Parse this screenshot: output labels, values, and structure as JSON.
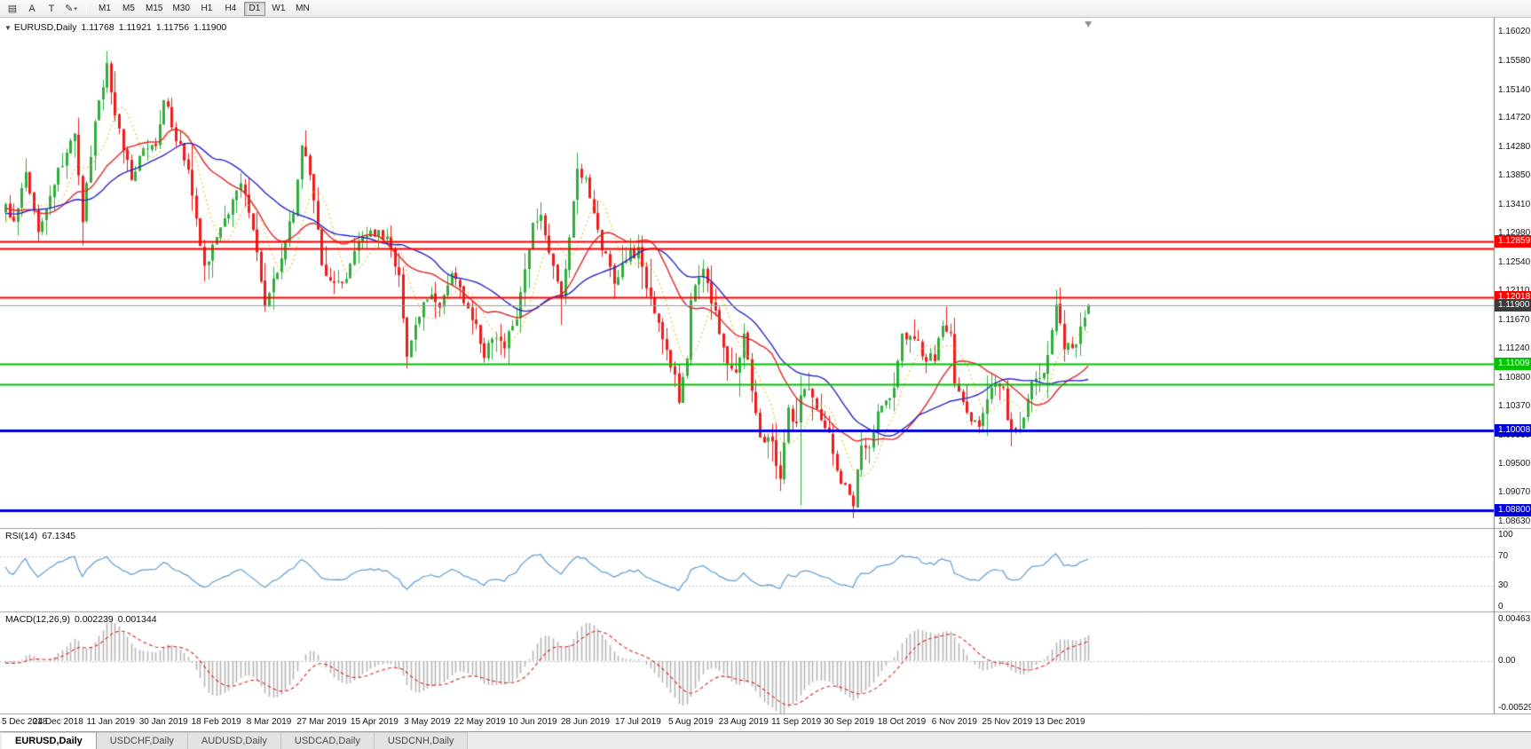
{
  "toolbar": {
    "left_buttons": [
      {
        "name": "charts-icon",
        "glyph": "▤"
      },
      {
        "name": "arrow-tool",
        "label": "A"
      },
      {
        "name": "text-tool",
        "label": "T"
      },
      {
        "name": "draw-tool",
        "glyph": "✎"
      },
      {
        "name": "dropdown-arrow",
        "glyph": "▾"
      }
    ],
    "timeframes": [
      {
        "label": "M1",
        "active": false
      },
      {
        "label": "M5",
        "active": false
      },
      {
        "label": "M15",
        "active": false
      },
      {
        "label": "M30",
        "active": false
      },
      {
        "label": "H1",
        "active": false
      },
      {
        "label": "H4",
        "active": false
      },
      {
        "label": "D1",
        "active": true
      },
      {
        "label": "W1",
        "active": false
      },
      {
        "label": "MN",
        "active": false
      }
    ]
  },
  "chart_header": {
    "collapse_arrow": "▼",
    "symbol": "EURUSD,Daily",
    "open": "1.11768",
    "high": "1.11921",
    "low": "1.11756",
    "close": "1.11900"
  },
  "price_axis": {
    "ticks": [
      "1.16020",
      "1.15580",
      "1.15140",
      "1.14720",
      "1.14280",
      "1.13850",
      "1.13410",
      "1.12980",
      "1.12540",
      "1.12110",
      "1.11670",
      "1.11240",
      "1.10800",
      "1.10370",
      "1.09930",
      "1.09500",
      "1.09070",
      "1.08630"
    ],
    "current_price": {
      "label": "1.11900",
      "color": "#3b3b3b"
    }
  },
  "x_axis": {
    "bars_per_label": 13,
    "labels": [
      "5 Dec 2018",
      "24 Dec 2018",
      "11 Jan 2019",
      "30 Jan 2019",
      "18 Feb 2019",
      "8 Mar 2019",
      "27 Mar 2019",
      "15 Apr 2019",
      "3 May 2019",
      "22 May 2019",
      "10 Jun 2019",
      "28 Jun 2019",
      "17 Jul 2019",
      "5 Aug 2019",
      "23 Aug 2019",
      "11 Sep 2019",
      "30 Sep 2019",
      "18 Oct 2019",
      "6 Nov 2019",
      "25 Nov 2019",
      "13 Dec 2019"
    ]
  },
  "chart_data": [
    {
      "type": "candlestick",
      "title": "EURUSD,Daily",
      "n_bars": 268,
      "y_range": [
        1.0863,
        1.1602
      ],
      "bull_color": "#2fae3d",
      "bear_color": "#ef1c1c",
      "last_ohlc": {
        "open": 1.11768,
        "high": 1.11921,
        "low": 1.11756,
        "close": 1.119
      },
      "close_path_anchors": [
        [
          0,
          1.134
        ],
        [
          2,
          1.1315
        ],
        [
          5,
          1.1395
        ],
        [
          8,
          1.13
        ],
        [
          11,
          1.135
        ],
        [
          13,
          1.1395
        ],
        [
          17,
          1.1445
        ],
        [
          19,
          1.132
        ],
        [
          22,
          1.146
        ],
        [
          25,
          1.1555
        ],
        [
          27,
          1.148
        ],
        [
          31,
          1.138
        ],
        [
          34,
          1.1425
        ],
        [
          37,
          1.1435
        ],
        [
          39,
          1.15
        ],
        [
          42,
          1.1445
        ],
        [
          45,
          1.14
        ],
        [
          49,
          1.1245
        ],
        [
          52,
          1.13
        ],
        [
          56,
          1.1345
        ],
        [
          58,
          1.137
        ],
        [
          61,
          1.131
        ],
        [
          64,
          1.1185
        ],
        [
          67,
          1.1245
        ],
        [
          71,
          1.133
        ],
        [
          73,
          1.1435
        ],
        [
          76,
          1.135
        ],
        [
          78,
          1.125
        ],
        [
          81,
          1.122
        ],
        [
          84,
          1.1235
        ],
        [
          87,
          1.1285
        ],
        [
          91,
          1.13
        ],
        [
          94,
          1.129
        ],
        [
          97,
          1.123
        ],
        [
          99,
          1.112
        ],
        [
          102,
          1.118
        ],
        [
          104,
          1.1205
        ],
        [
          107,
          1.119
        ],
        [
          110,
          1.1235
        ],
        [
          113,
          1.12
        ],
        [
          116,
          1.116
        ],
        [
          118,
          1.1115
        ],
        [
          120,
          1.114
        ],
        [
          123,
          1.113
        ],
        [
          126,
          1.1175
        ],
        [
          128,
          1.125
        ],
        [
          130,
          1.131
        ],
        [
          132,
          1.133
        ],
        [
          134,
          1.127
        ],
        [
          137,
          1.1195
        ],
        [
          139,
          1.129
        ],
        [
          141,
          1.139
        ],
        [
          143,
          1.138
        ],
        [
          147,
          1.128
        ],
        [
          150,
          1.122
        ],
        [
          153,
          1.1265
        ],
        [
          156,
          1.127
        ],
        [
          159,
          1.12
        ],
        [
          162,
          1.114
        ],
        [
          165,
          1.108
        ],
        [
          166,
          1.104
        ],
        [
          168,
          1.111
        ],
        [
          169,
          1.12
        ],
        [
          172,
          1.124
        ],
        [
          175,
          1.118
        ],
        [
          178,
          1.11
        ],
        [
          180,
          1.109
        ],
        [
          182,
          1.114
        ],
        [
          183,
          1.11
        ],
        [
          186,
          1.099
        ],
        [
          189,
          1.098
        ],
        [
          191,
          1.093
        ],
        [
          193,
          1.103
        ],
        [
          195,
          1.101
        ],
        [
          196,
          1.106
        ],
        [
          198,
          1.107
        ],
        [
          200,
          1.104
        ],
        [
          203,
          1.099
        ],
        [
          205,
          1.094
        ],
        [
          208,
          1.09
        ],
        [
          209,
          1.089
        ],
        [
          211,
          1.098
        ],
        [
          213,
          1.097
        ],
        [
          215,
          1.103
        ],
        [
          217,
          1.104
        ],
        [
          219,
          1.107
        ],
        [
          221,
          1.114
        ],
        [
          223,
          1.115
        ],
        [
          225,
          1.113
        ],
        [
          227,
          1.111
        ],
        [
          229,
          1.111
        ],
        [
          231,
          1.116
        ],
        [
          233,
          1.115
        ],
        [
          234,
          1.107
        ],
        [
          236,
          1.105
        ],
        [
          238,
          1.102
        ],
        [
          240,
          1.101
        ],
        [
          242,
          1.105
        ],
        [
          244,
          1.107
        ],
        [
          246,
          1.106
        ],
        [
          247,
          1.102
        ],
        [
          249,
          1.1
        ],
        [
          251,
          1.102
        ],
        [
          253,
          1.108
        ],
        [
          255,
          1.108
        ],
        [
          257,
          1.111
        ],
        [
          259,
          1.1185
        ],
        [
          261,
          1.113
        ],
        [
          263,
          1.112
        ],
        [
          265,
          1.115
        ],
        [
          267,
          1.119
        ]
      ],
      "wick_events": [
        {
          "bar": 25,
          "up": 0.0018,
          "down": 0.0008
        },
        {
          "bar": 196,
          "up": 0.003,
          "down": 0.0125
        },
        {
          "bar": 209,
          "up": 0.0006,
          "down": 0.0018
        },
        {
          "bar": 259,
          "up": 0.0022,
          "down": 0.0006
        }
      ],
      "moving_averages": [
        {
          "name": "ma-fast",
          "period": 8,
          "color": "#e7b30c",
          "style": "dotted"
        },
        {
          "name": "ma-mid",
          "period": 21,
          "color": "#e02626",
          "style": "solid"
        },
        {
          "name": "ma-slow",
          "period": 34,
          "color": "#2929c8",
          "style": "solid"
        }
      ],
      "hlines": [
        {
          "price": 1.12859,
          "color": "#ff0000",
          "label": "1.12859",
          "badge": true,
          "width": 2
        },
        {
          "price": 1.1275,
          "color": "#ff0000",
          "width": 2
        },
        {
          "price": 1.12018,
          "color": "#ff0000",
          "label": "1.12018",
          "badge": true,
          "width": 2
        },
        {
          "price": 1.11009,
          "color": "#00c400",
          "label": "1.11009",
          "badge": true,
          "width": 2
        },
        {
          "price": 1.1071,
          "color": "#00c400",
          "width": 2
        },
        {
          "price": 1.10008,
          "color": "#0000dd",
          "label": "1.10008",
          "badge": true,
          "width": 3
        },
        {
          "price": 1.088,
          "color": "#0000dd",
          "label": "1.08800",
          "badge": true,
          "width": 3
        }
      ],
      "bid_line": {
        "price": 1.119,
        "color": "#9a9a9a"
      }
    },
    {
      "type": "line",
      "label": "RSI(14)",
      "value": "67.1345",
      "period": 14,
      "ticks": [
        "100",
        "70",
        "30",
        "0"
      ],
      "tick_values": [
        100,
        70,
        30,
        0
      ],
      "level_lines": [
        70,
        30
      ],
      "line_color": "#5b9bd5"
    },
    {
      "type": "bar",
      "label": "MACD(12,26,9)",
      "macd_value": "0.002239",
      "signal_value": "0.001344",
      "fast": 12,
      "slow": 26,
      "signal": 9,
      "ticks": [
        "0.00463",
        "0.00",
        "-0.005295"
      ],
      "tick_values": [
        0.00463,
        0,
        -0.005295
      ],
      "y_range": [
        -0.005295,
        0.00463
      ],
      "hist_color": "#b6b6b6",
      "signal_color": "#e02626"
    }
  ],
  "tabs": [
    {
      "label": "EURUSD,Daily",
      "active": true
    },
    {
      "label": "USDCHF,Daily",
      "active": false
    },
    {
      "label": "AUDUSD,Daily",
      "active": false
    },
    {
      "label": "USDCAD,Daily",
      "active": false
    },
    {
      "label": "USDCNH,Daily",
      "active": false
    }
  ]
}
